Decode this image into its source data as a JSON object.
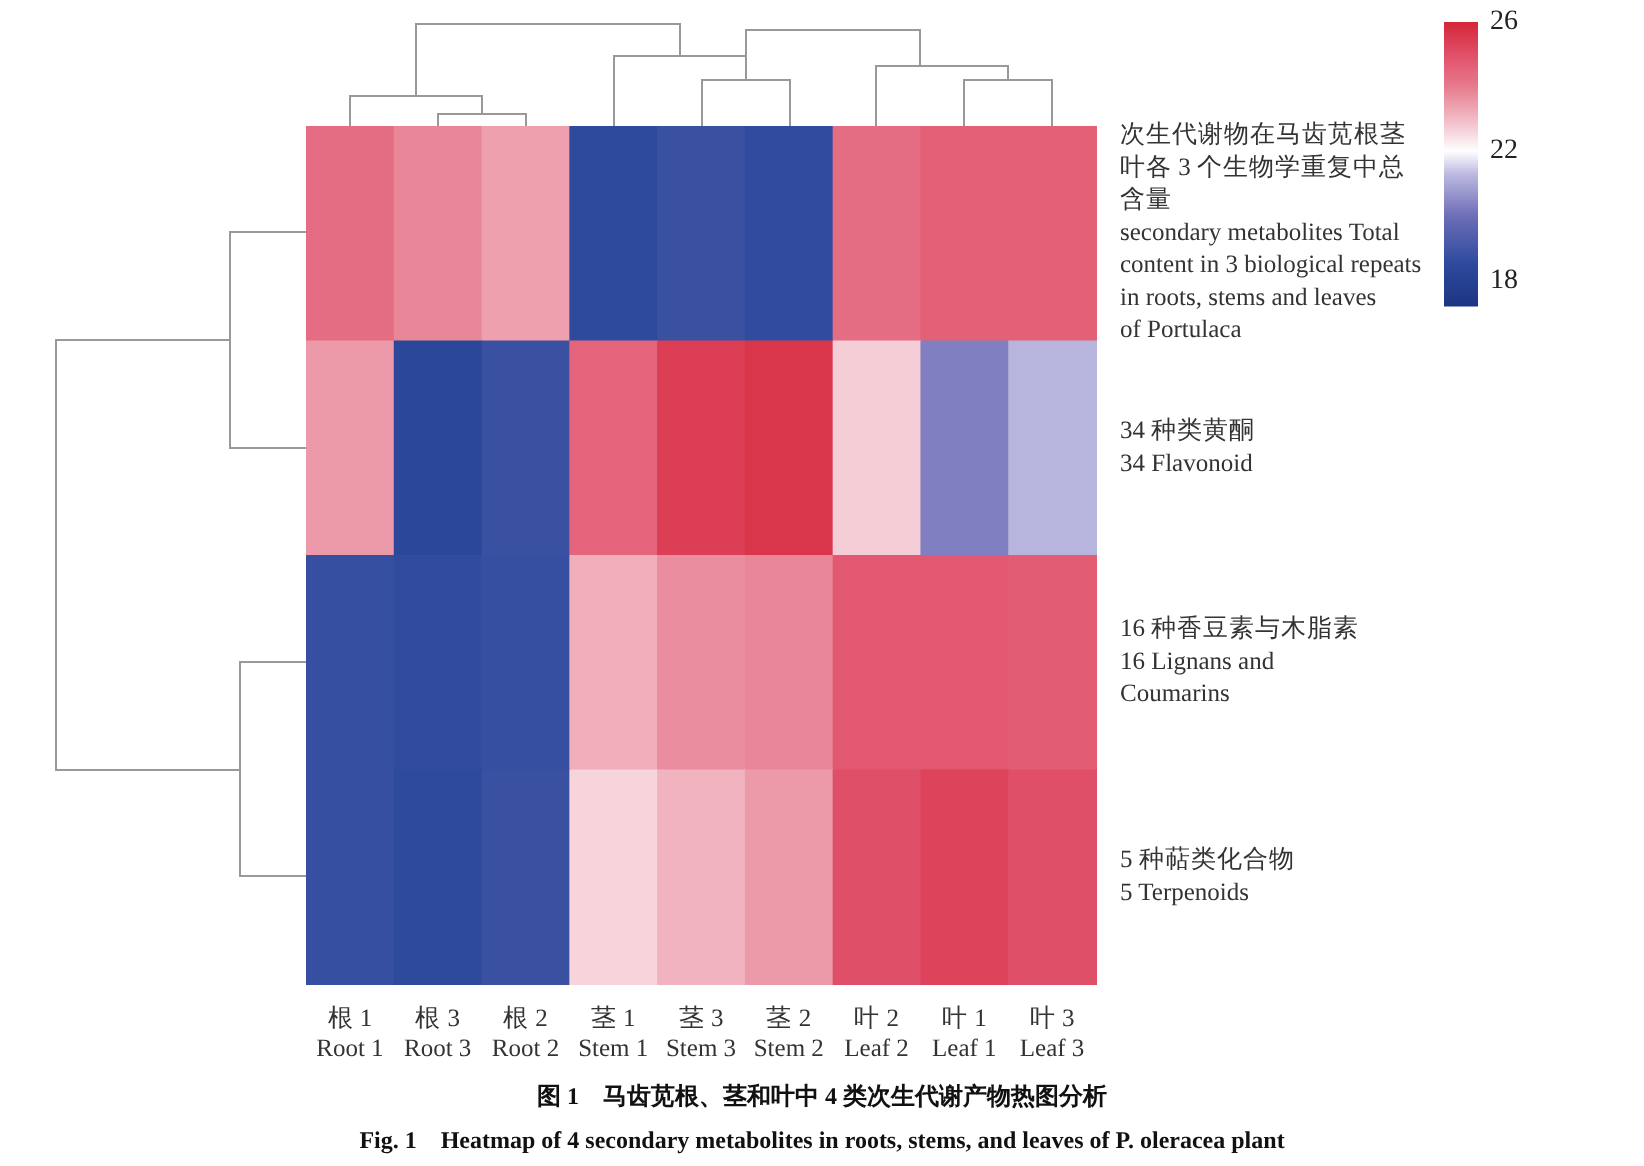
{
  "chart_data": {
    "type": "heatmap",
    "title": "图 1　马齿苋根、茎和叶中 4 类次生代谢产物热图分析",
    "subtitle": "Fig. 1　Heatmap of 4 secondary metabolites in roots, stems, and leaves of P. oleracea plant",
    "categories": [
      "根 1\nRoot 1",
      "根 3\nRoot 3",
      "根 2\nRoot 2",
      "茎 1\nStem 1",
      "茎 3\nStem 3",
      "茎 2\nStem 2",
      "叶 2\nLeaf 2",
      "叶 1\nLeaf 1",
      "叶 3\nLeaf 3"
    ],
    "y_categories": [
      "次生代谢物在马齿苋根茎叶各 3 个生物学重复中总含量\nsecondary metabolites Total\ncontent in 3 biological repeats\nin roots, stems and leaves\nof Portulaca",
      "34 种类黄酮\n34 Flavonoid",
      "16 种香豆素与木脂素\n16 Lignans and\nCoumarins",
      "5 种萜类化合物\n5 Terpenoids"
    ],
    "cells": [
      [
        24.3,
        23.8,
        23.4,
        18.5,
        18.8,
        18.6,
        24.3,
        24.6,
        24.6
      ],
      [
        23.5,
        18.3,
        18.8,
        24.5,
        25.4,
        25.6,
        22.7,
        20.3,
        21.2
      ],
      [
        18.7,
        18.6,
        18.7,
        23.2,
        23.7,
        23.8,
        24.8,
        24.8,
        24.7
      ],
      [
        18.7,
        18.5,
        18.8,
        22.6,
        23.1,
        23.5,
        25.0,
        25.3,
        25.0
      ]
    ],
    "clim": [
      17.2,
      26
    ],
    "cticks": [
      18,
      22,
      26
    ]
  }
}
